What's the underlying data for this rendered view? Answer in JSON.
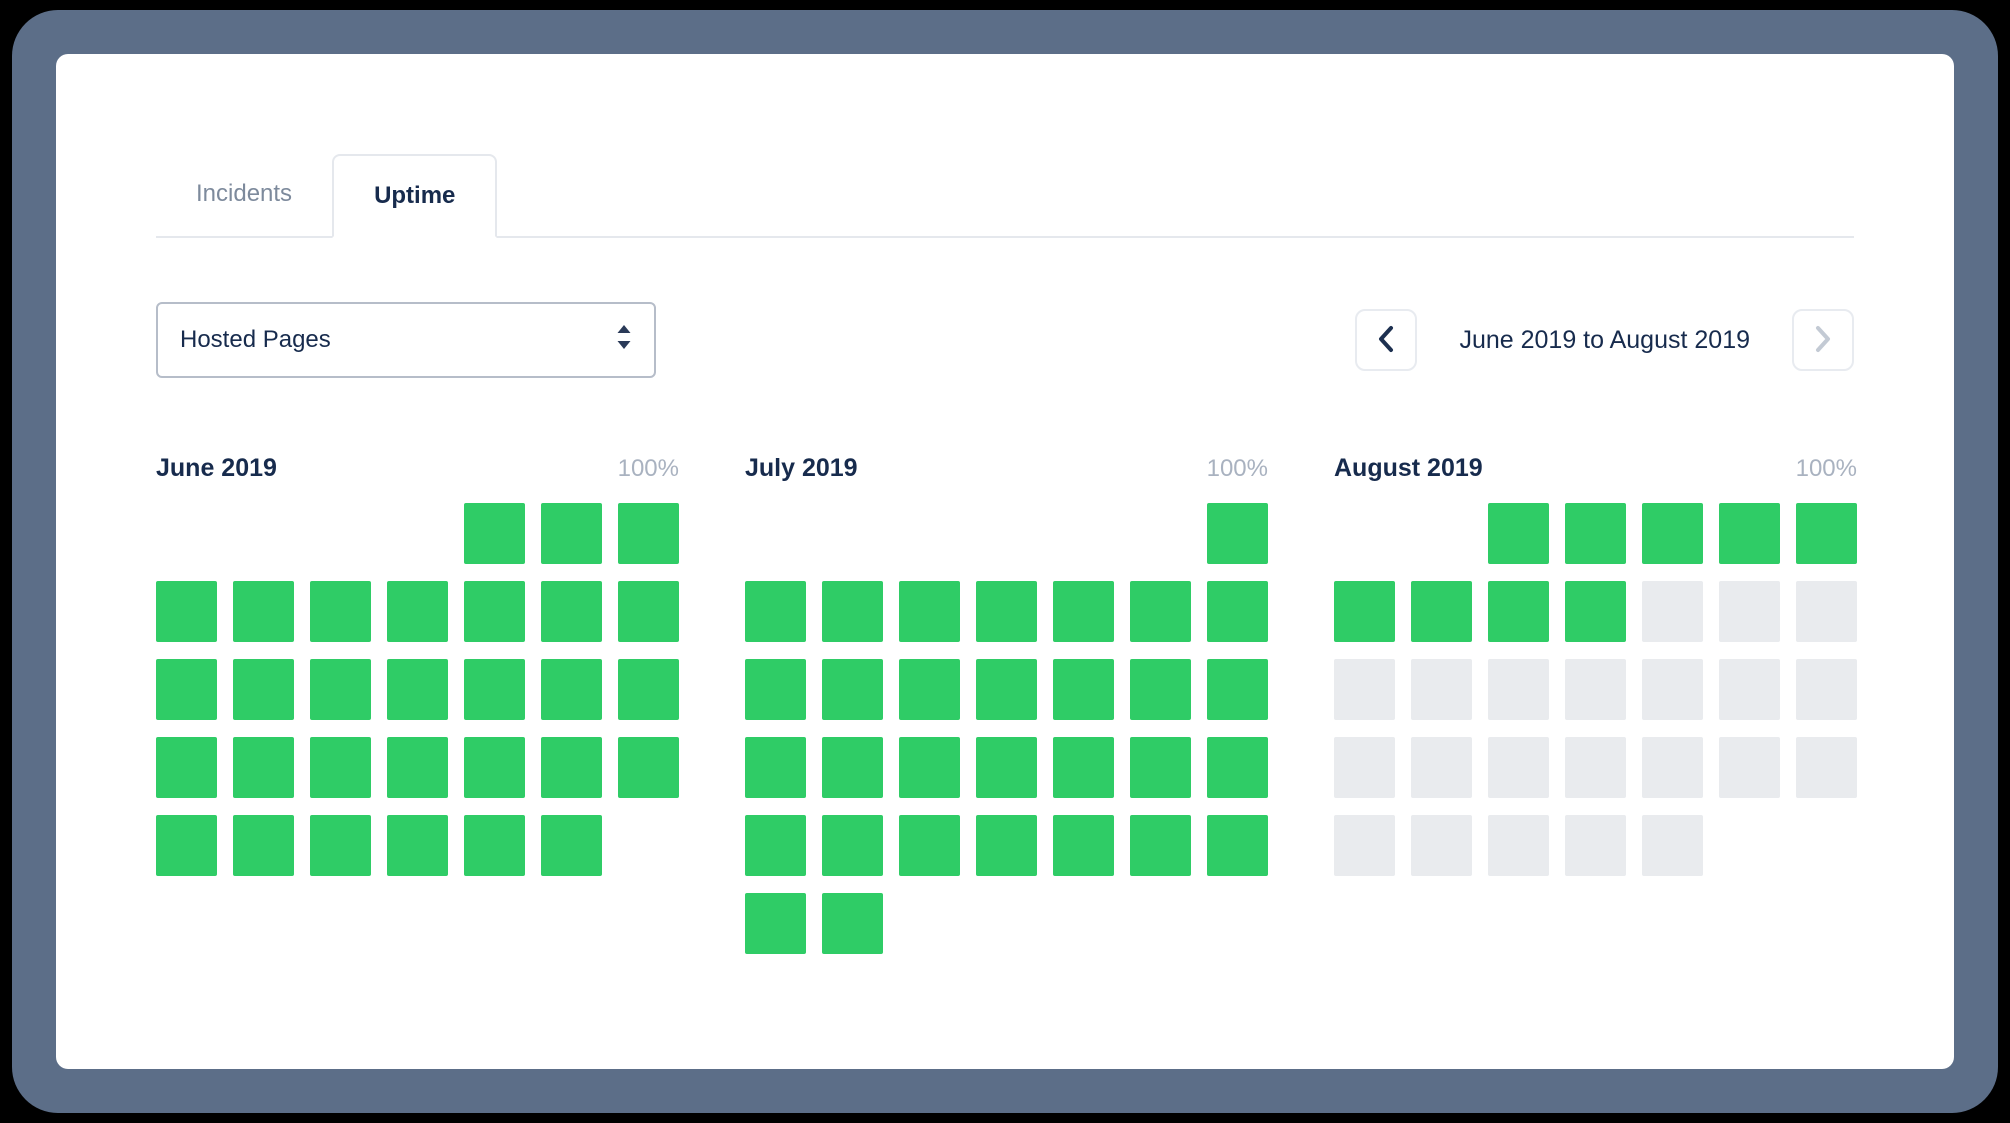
{
  "colors": {
    "uptime_green": "#2fcc66",
    "future_gray": "#e9ebee",
    "accent_navy": "#172b4d",
    "frame_slate": "#5c6e88"
  },
  "tabs": [
    {
      "label": "Incidents",
      "active": false
    },
    {
      "label": "Uptime",
      "active": true
    }
  ],
  "selector": {
    "value": "Hosted Pages"
  },
  "range": {
    "label": "June 2019 to August 2019"
  },
  "months": [
    {
      "name": "June 2019",
      "uptime": "100%",
      "grid": [
        [
          "none",
          "none",
          "none",
          "none",
          "up",
          "up",
          "up"
        ],
        [
          "up",
          "up",
          "up",
          "up",
          "up",
          "up",
          "up"
        ],
        [
          "up",
          "up",
          "up",
          "up",
          "up",
          "up",
          "up"
        ],
        [
          "up",
          "up",
          "up",
          "up",
          "up",
          "up",
          "up"
        ],
        [
          "up",
          "up",
          "up",
          "up",
          "up",
          "up",
          "none"
        ]
      ]
    },
    {
      "name": "July 2019",
      "uptime": "100%",
      "grid": [
        [
          "none",
          "none",
          "none",
          "none",
          "none",
          "none",
          "up"
        ],
        [
          "up",
          "up",
          "up",
          "up",
          "up",
          "up",
          "up"
        ],
        [
          "up",
          "up",
          "up",
          "up",
          "up",
          "up",
          "up"
        ],
        [
          "up",
          "up",
          "up",
          "up",
          "up",
          "up",
          "up"
        ],
        [
          "up",
          "up",
          "up",
          "up",
          "up",
          "up",
          "up"
        ],
        [
          "up",
          "up",
          "none",
          "none",
          "none",
          "none",
          "none"
        ]
      ]
    },
    {
      "name": "August 2019",
      "uptime": "100%",
      "grid": [
        [
          "none",
          "none",
          "up",
          "up",
          "up",
          "up",
          "up"
        ],
        [
          "up",
          "up",
          "up",
          "up",
          "future",
          "future",
          "future"
        ],
        [
          "future",
          "future",
          "future",
          "future",
          "future",
          "future",
          "future"
        ],
        [
          "future",
          "future",
          "future",
          "future",
          "future",
          "future",
          "future"
        ],
        [
          "future",
          "future",
          "future",
          "future",
          "future",
          "none",
          "none"
        ]
      ]
    }
  ]
}
